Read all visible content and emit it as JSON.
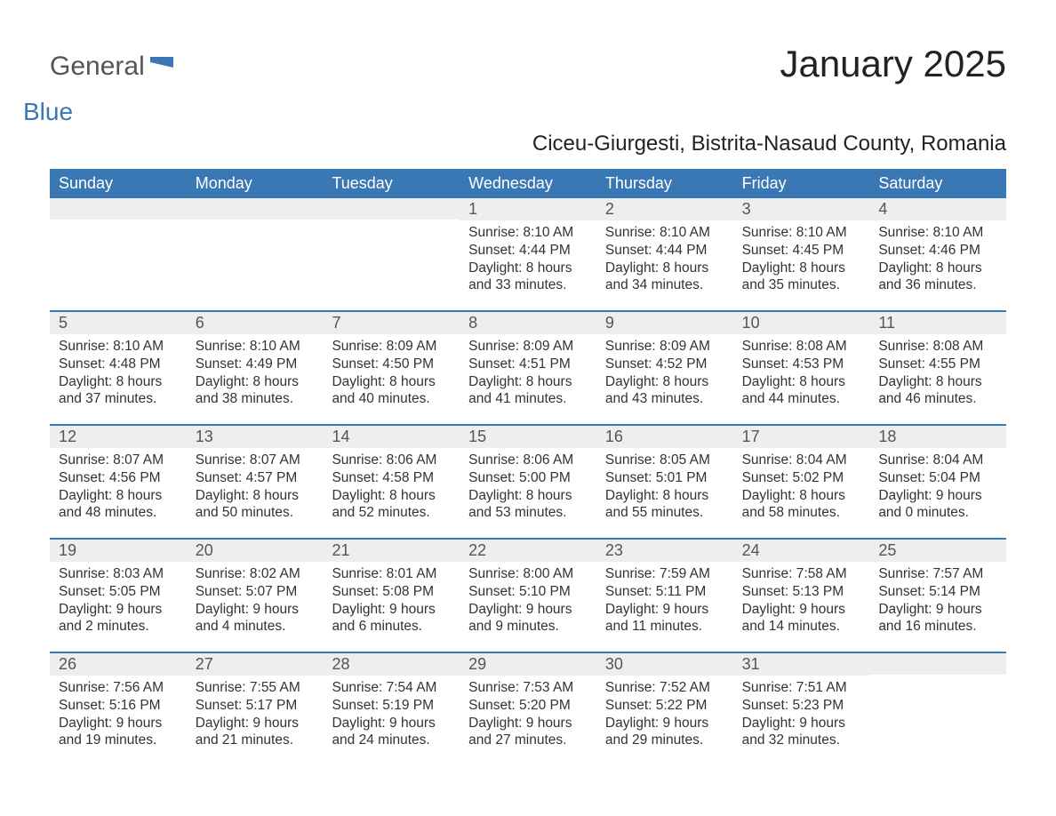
{
  "logo": {
    "text1": "General",
    "text2": "Blue"
  },
  "title": "January 2025",
  "subtitle": "Ciceu-Giurgesti, Bistrita-Nasaud County, Romania",
  "colors": {
    "header_bg": "#3a78b5",
    "header_text": "#ffffff",
    "daynum_bg": "#eeeeee",
    "daynum_text": "#555555",
    "body_text": "#333333",
    "page_bg": "#ffffff",
    "week_divider": "#3a78b5",
    "logo_gray": "#555555",
    "logo_blue": "#3a78b5"
  },
  "typography": {
    "title_fontsize": 42,
    "subtitle_fontsize": 24,
    "dayheader_fontsize": 18,
    "daynum_fontsize": 18,
    "body_fontsize": 15.5,
    "font_family": "Arial"
  },
  "day_headers": [
    "Sunday",
    "Monday",
    "Tuesday",
    "Wednesday",
    "Thursday",
    "Friday",
    "Saturday"
  ],
  "weeks": [
    [
      {
        "day": "",
        "sunrise": "",
        "sunset": "",
        "daylight": ""
      },
      {
        "day": "",
        "sunrise": "",
        "sunset": "",
        "daylight": ""
      },
      {
        "day": "",
        "sunrise": "",
        "sunset": "",
        "daylight": ""
      },
      {
        "day": "1",
        "sunrise": "Sunrise: 8:10 AM",
        "sunset": "Sunset: 4:44 PM",
        "daylight": "Daylight: 8 hours and 33 minutes."
      },
      {
        "day": "2",
        "sunrise": "Sunrise: 8:10 AM",
        "sunset": "Sunset: 4:44 PM",
        "daylight": "Daylight: 8 hours and 34 minutes."
      },
      {
        "day": "3",
        "sunrise": "Sunrise: 8:10 AM",
        "sunset": "Sunset: 4:45 PM",
        "daylight": "Daylight: 8 hours and 35 minutes."
      },
      {
        "day": "4",
        "sunrise": "Sunrise: 8:10 AM",
        "sunset": "Sunset: 4:46 PM",
        "daylight": "Daylight: 8 hours and 36 minutes."
      }
    ],
    [
      {
        "day": "5",
        "sunrise": "Sunrise: 8:10 AM",
        "sunset": "Sunset: 4:48 PM",
        "daylight": "Daylight: 8 hours and 37 minutes."
      },
      {
        "day": "6",
        "sunrise": "Sunrise: 8:10 AM",
        "sunset": "Sunset: 4:49 PM",
        "daylight": "Daylight: 8 hours and 38 minutes."
      },
      {
        "day": "7",
        "sunrise": "Sunrise: 8:09 AM",
        "sunset": "Sunset: 4:50 PM",
        "daylight": "Daylight: 8 hours and 40 minutes."
      },
      {
        "day": "8",
        "sunrise": "Sunrise: 8:09 AM",
        "sunset": "Sunset: 4:51 PM",
        "daylight": "Daylight: 8 hours and 41 minutes."
      },
      {
        "day": "9",
        "sunrise": "Sunrise: 8:09 AM",
        "sunset": "Sunset: 4:52 PM",
        "daylight": "Daylight: 8 hours and 43 minutes."
      },
      {
        "day": "10",
        "sunrise": "Sunrise: 8:08 AM",
        "sunset": "Sunset: 4:53 PM",
        "daylight": "Daylight: 8 hours and 44 minutes."
      },
      {
        "day": "11",
        "sunrise": "Sunrise: 8:08 AM",
        "sunset": "Sunset: 4:55 PM",
        "daylight": "Daylight: 8 hours and 46 minutes."
      }
    ],
    [
      {
        "day": "12",
        "sunrise": "Sunrise: 8:07 AM",
        "sunset": "Sunset: 4:56 PM",
        "daylight": "Daylight: 8 hours and 48 minutes."
      },
      {
        "day": "13",
        "sunrise": "Sunrise: 8:07 AM",
        "sunset": "Sunset: 4:57 PM",
        "daylight": "Daylight: 8 hours and 50 minutes."
      },
      {
        "day": "14",
        "sunrise": "Sunrise: 8:06 AM",
        "sunset": "Sunset: 4:58 PM",
        "daylight": "Daylight: 8 hours and 52 minutes."
      },
      {
        "day": "15",
        "sunrise": "Sunrise: 8:06 AM",
        "sunset": "Sunset: 5:00 PM",
        "daylight": "Daylight: 8 hours and 53 minutes."
      },
      {
        "day": "16",
        "sunrise": "Sunrise: 8:05 AM",
        "sunset": "Sunset: 5:01 PM",
        "daylight": "Daylight: 8 hours and 55 minutes."
      },
      {
        "day": "17",
        "sunrise": "Sunrise: 8:04 AM",
        "sunset": "Sunset: 5:02 PM",
        "daylight": "Daylight: 8 hours and 58 minutes."
      },
      {
        "day": "18",
        "sunrise": "Sunrise: 8:04 AM",
        "sunset": "Sunset: 5:04 PM",
        "daylight": "Daylight: 9 hours and 0 minutes."
      }
    ],
    [
      {
        "day": "19",
        "sunrise": "Sunrise: 8:03 AM",
        "sunset": "Sunset: 5:05 PM",
        "daylight": "Daylight: 9 hours and 2 minutes."
      },
      {
        "day": "20",
        "sunrise": "Sunrise: 8:02 AM",
        "sunset": "Sunset: 5:07 PM",
        "daylight": "Daylight: 9 hours and 4 minutes."
      },
      {
        "day": "21",
        "sunrise": "Sunrise: 8:01 AM",
        "sunset": "Sunset: 5:08 PM",
        "daylight": "Daylight: 9 hours and 6 minutes."
      },
      {
        "day": "22",
        "sunrise": "Sunrise: 8:00 AM",
        "sunset": "Sunset: 5:10 PM",
        "daylight": "Daylight: 9 hours and 9 minutes."
      },
      {
        "day": "23",
        "sunrise": "Sunrise: 7:59 AM",
        "sunset": "Sunset: 5:11 PM",
        "daylight": "Daylight: 9 hours and 11 minutes."
      },
      {
        "day": "24",
        "sunrise": "Sunrise: 7:58 AM",
        "sunset": "Sunset: 5:13 PM",
        "daylight": "Daylight: 9 hours and 14 minutes."
      },
      {
        "day": "25",
        "sunrise": "Sunrise: 7:57 AM",
        "sunset": "Sunset: 5:14 PM",
        "daylight": "Daylight: 9 hours and 16 minutes."
      }
    ],
    [
      {
        "day": "26",
        "sunrise": "Sunrise: 7:56 AM",
        "sunset": "Sunset: 5:16 PM",
        "daylight": "Daylight: 9 hours and 19 minutes."
      },
      {
        "day": "27",
        "sunrise": "Sunrise: 7:55 AM",
        "sunset": "Sunset: 5:17 PM",
        "daylight": "Daylight: 9 hours and 21 minutes."
      },
      {
        "day": "28",
        "sunrise": "Sunrise: 7:54 AM",
        "sunset": "Sunset: 5:19 PM",
        "daylight": "Daylight: 9 hours and 24 minutes."
      },
      {
        "day": "29",
        "sunrise": "Sunrise: 7:53 AM",
        "sunset": "Sunset: 5:20 PM",
        "daylight": "Daylight: 9 hours and 27 minutes."
      },
      {
        "day": "30",
        "sunrise": "Sunrise: 7:52 AM",
        "sunset": "Sunset: 5:22 PM",
        "daylight": "Daylight: 9 hours and 29 minutes."
      },
      {
        "day": "31",
        "sunrise": "Sunrise: 7:51 AM",
        "sunset": "Sunset: 5:23 PM",
        "daylight": "Daylight: 9 hours and 32 minutes."
      },
      {
        "day": "",
        "sunrise": "",
        "sunset": "",
        "daylight": ""
      }
    ]
  ]
}
